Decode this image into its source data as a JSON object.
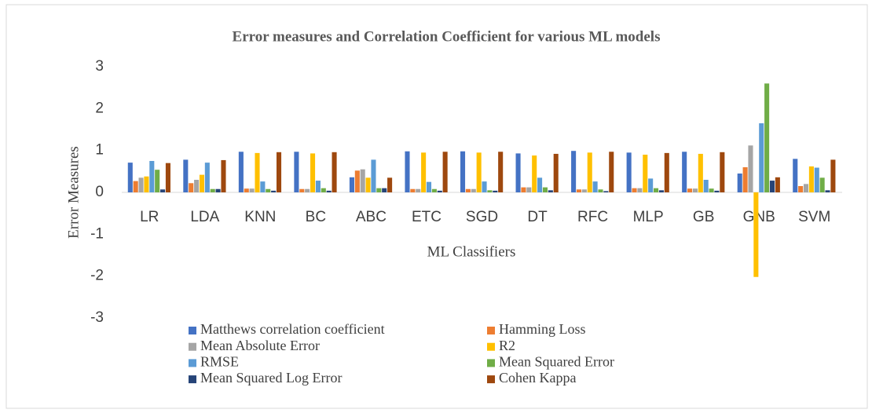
{
  "chart_data": {
    "type": "bar",
    "title": "Error measures and Correlation Coefficient for various ML  models",
    "x_label": "ML Classifiers",
    "y_label": "Error Measures",
    "categories": [
      "LR",
      "LDA",
      "KNN",
      "BC",
      "ABC",
      "ETC",
      "SGD",
      "DT",
      "RFC",
      "MLP",
      "GB",
      "GNB",
      "SVM"
    ],
    "series": [
      {
        "name": "Matthews correlation coefficient",
        "color": "#4472c4",
        "values": [
          0.71,
          0.78,
          0.97,
          0.97,
          0.36,
          0.98,
          0.98,
          0.93,
          0.99,
          0.95,
          0.97,
          0.45,
          0.8
        ]
      },
      {
        "name": "Hamming Loss",
        "color": "#ed7d31",
        "values": [
          0.27,
          0.22,
          0.09,
          0.08,
          0.52,
          0.08,
          0.08,
          0.12,
          0.07,
          0.1,
          0.09,
          0.6,
          0.15
        ]
      },
      {
        "name": "Mean Absolute Error",
        "color": "#a5a5a5",
        "values": [
          0.35,
          0.3,
          0.09,
          0.08,
          0.55,
          0.08,
          0.08,
          0.12,
          0.07,
          0.1,
          0.09,
          1.12,
          0.2
        ]
      },
      {
        "name": "R2",
        "color": "#ffc000",
        "values": [
          0.38,
          0.42,
          0.94,
          0.93,
          0.35,
          0.95,
          0.95,
          0.88,
          0.95,
          0.9,
          0.92,
          -2.02,
          0.62
        ]
      },
      {
        "name": "RMSE",
        "color": "#5b9bd5",
        "values": [
          0.75,
          0.71,
          0.26,
          0.28,
          0.78,
          0.25,
          0.26,
          0.35,
          0.26,
          0.33,
          0.3,
          1.65,
          0.59
        ]
      },
      {
        "name": "Mean Squared Error",
        "color": "#70ad47",
        "values": [
          0.54,
          0.08,
          0.08,
          0.1,
          0.1,
          0.08,
          0.05,
          0.12,
          0.07,
          0.1,
          0.09,
          2.6,
          0.35
        ]
      },
      {
        "name": "Mean Squared Log Error",
        "color": "#264478",
        "values": [
          0.07,
          0.08,
          0.04,
          0.04,
          0.1,
          0.04,
          0.04,
          0.05,
          0.03,
          0.05,
          0.04,
          0.28,
          0.05
        ]
      },
      {
        "name": "Cohen Kappa",
        "color": "#9e480e",
        "values": [
          0.7,
          0.77,
          0.96,
          0.96,
          0.35,
          0.97,
          0.97,
          0.92,
          0.97,
          0.94,
          0.96,
          0.36,
          0.78
        ]
      }
    ],
    "ylim": [
      -3,
      3
    ],
    "yticks": [
      -3,
      -2,
      -1,
      0,
      1,
      2,
      3
    ],
    "grid": false,
    "legend": "bottom"
  }
}
